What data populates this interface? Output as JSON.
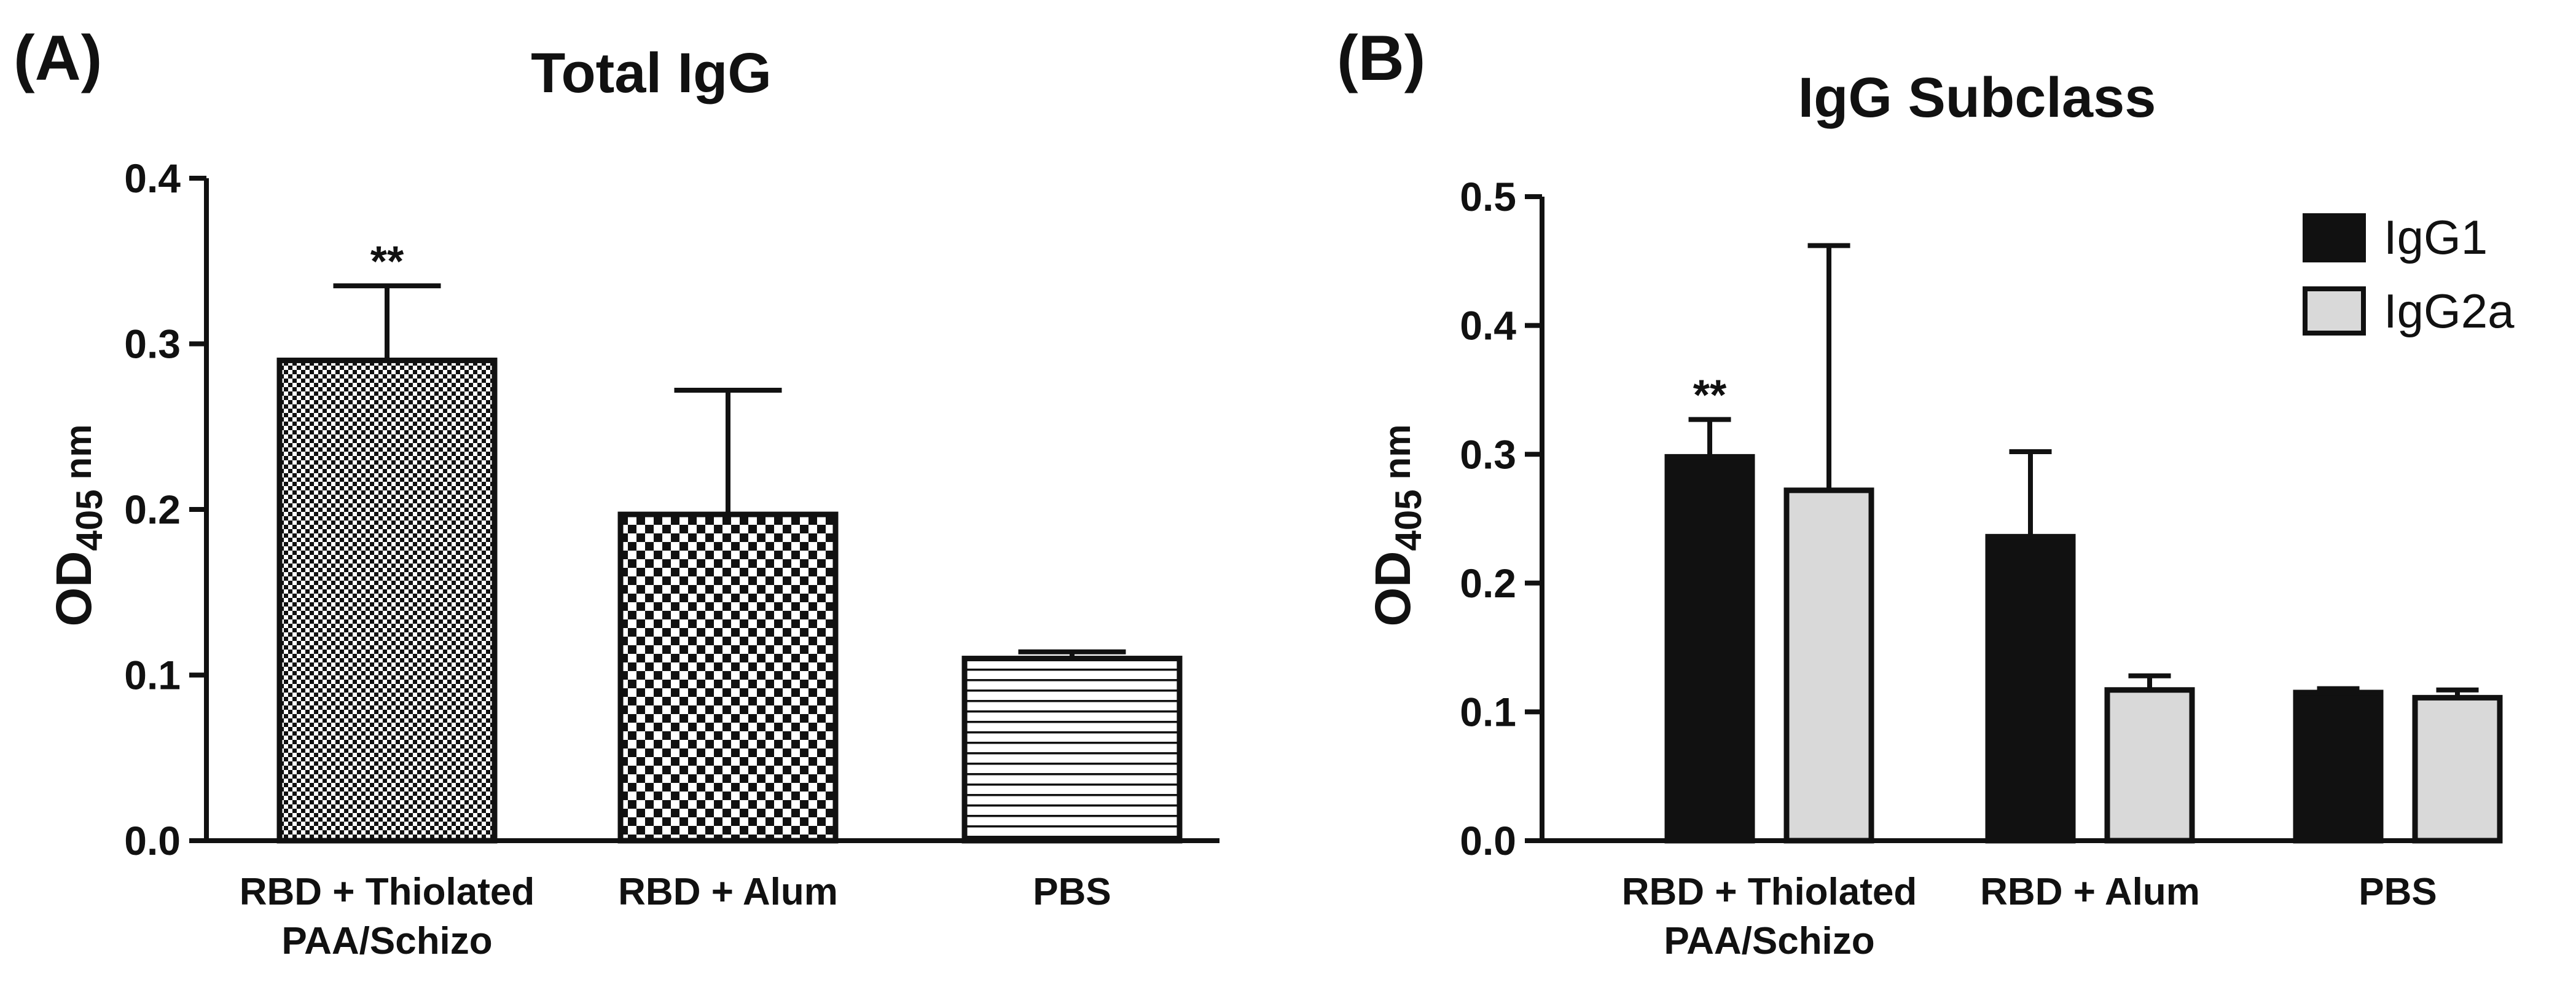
{
  "chart_data": [
    {
      "panel_label": "(A)",
      "type": "bar",
      "title": "Total IgG",
      "ylabel": {
        "main": "OD",
        "sub": "405",
        "unit": "nm"
      },
      "ylim": [
        0,
        0.4
      ],
      "yticks": [
        "0.0",
        "0.1",
        "0.2",
        "0.3",
        "0.4"
      ],
      "categories": [
        {
          "line1": "RBD + Thiolated",
          "line2": "PAA/Schizo"
        },
        {
          "line1": "RBD + Alum",
          "line2": ""
        },
        {
          "line1": "PBS",
          "line2": ""
        }
      ],
      "series": [
        {
          "name": "Total IgG",
          "values": [
            0.29,
            0.197,
            0.11
          ],
          "errors": [
            0.045,
            0.075,
            0.004
          ],
          "patterns": [
            "fine-check",
            "coarse-check",
            "hlines"
          ],
          "annotations": [
            "**",
            "",
            ""
          ]
        }
      ]
    },
    {
      "panel_label": "(B)",
      "type": "bar",
      "title": "IgG Subclass",
      "ylabel": {
        "main": "OD",
        "sub": "405",
        "unit": "nm"
      },
      "ylim": [
        0,
        0.5
      ],
      "yticks": [
        "0.0",
        "0.1",
        "0.2",
        "0.3",
        "0.4",
        "0.5"
      ],
      "categories": [
        {
          "line1": "RBD + Thiolated",
          "line2": "PAA/Schizo"
        },
        {
          "line1": "RBD + Alum",
          "line2": ""
        },
        {
          "line1": "PBS",
          "line2": ""
        }
      ],
      "legend": {
        "position": "top-right"
      },
      "series": [
        {
          "name": "IgG1",
          "color": "#111111",
          "values": [
            0.298,
            0.236,
            0.115
          ],
          "errors": [
            0.029,
            0.066,
            0.003
          ],
          "annotations": [
            "**",
            "",
            ""
          ]
        },
        {
          "name": "IgG2a",
          "color": "#d9d9d9",
          "values": [
            0.272,
            0.117,
            0.111
          ],
          "errors": [
            0.19,
            0.011,
            0.006
          ],
          "annotations": [
            "",
            "",
            ""
          ]
        }
      ]
    }
  ]
}
